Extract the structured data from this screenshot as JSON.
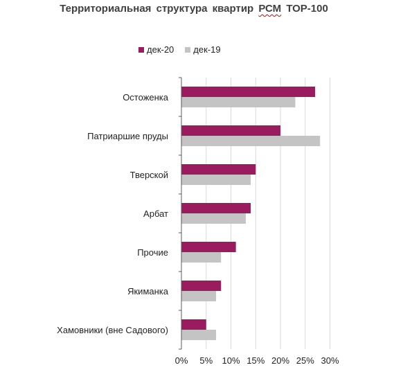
{
  "title_main": "Территориальная  структура  квартир ",
  "title_rcm": "РСМ",
  "title_tail": " ТОР-100",
  "colors": {
    "dek20": "#9b1c5e",
    "dek19": "#c4c4c4",
    "grid": "#d9d9d9",
    "axis": "#595959"
  },
  "chart_data": {
    "type": "bar",
    "orientation": "horizontal",
    "title": "Территориальная  структура  квартир РСМ ТОР-100",
    "categories": [
      "Остоженка",
      "Патриаршие пруды",
      "Тверской",
      "Арбат",
      "Прочие",
      "Якиманка",
      "Хамовники (вне Садового)"
    ],
    "series": [
      {
        "name": "дек-20",
        "values": [
          27,
          20,
          15,
          14,
          11,
          8,
          5
        ]
      },
      {
        "name": "дек-19",
        "values": [
          23,
          28,
          14,
          13,
          8,
          7,
          7
        ]
      }
    ],
    "xlim": [
      0,
      30
    ],
    "xticks": [
      "0%",
      "5%",
      "10%",
      "15%",
      "20%",
      "25%",
      "30%"
    ],
    "grid": true,
    "legend_position": "top"
  }
}
